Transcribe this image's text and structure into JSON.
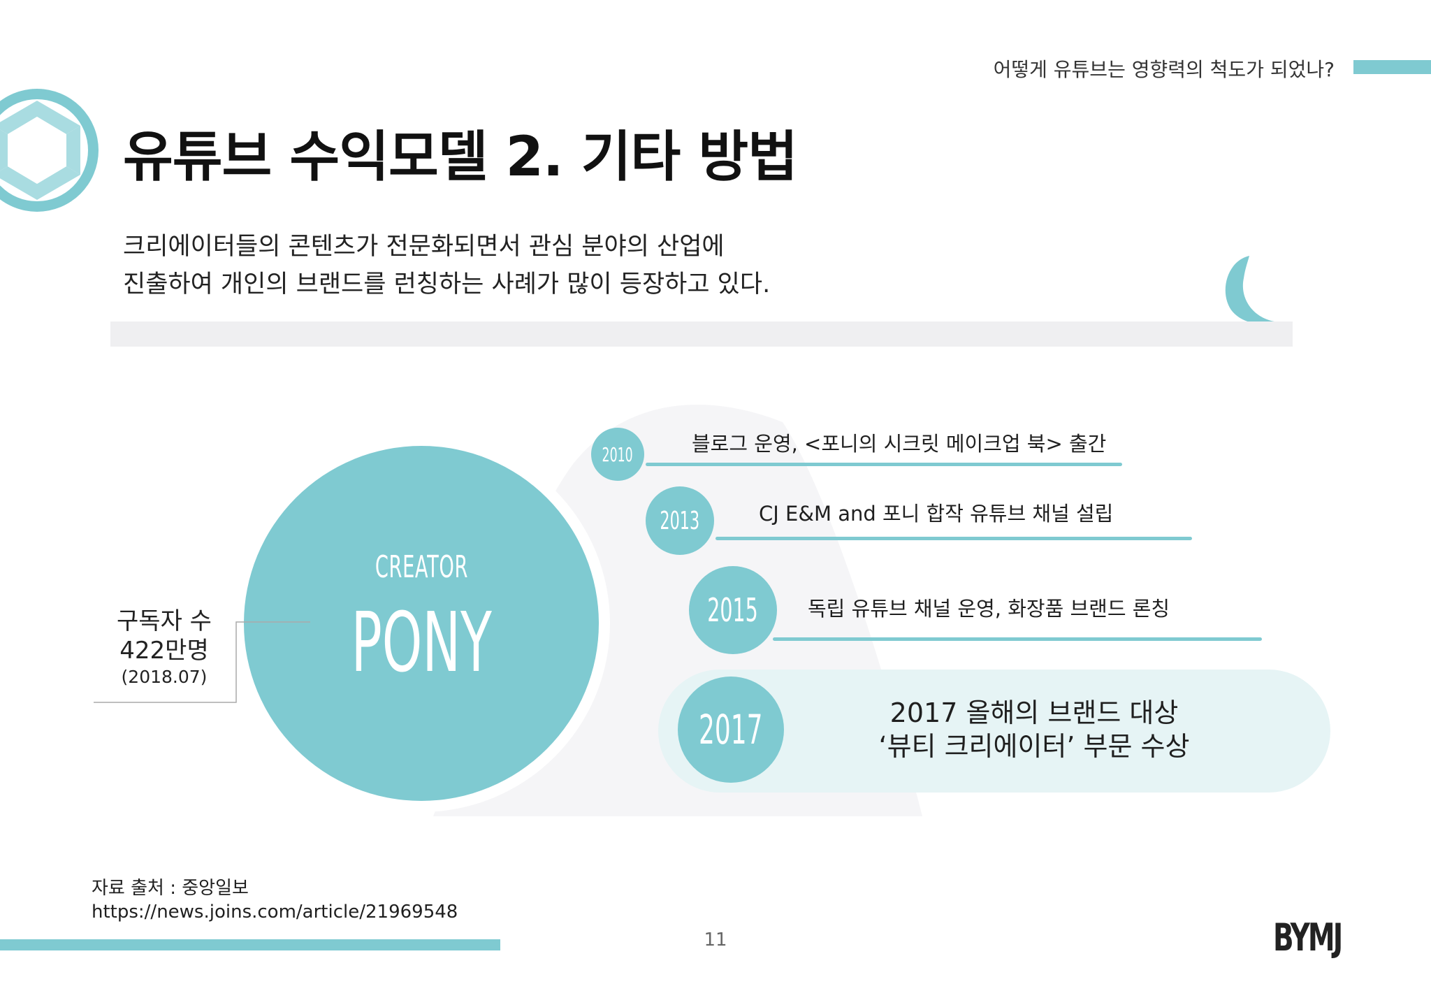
{
  "header": {
    "topic": "어떻게 유튜브는 영향력의 척도가 되었나?",
    "title": "유튜브 수익모델 2. 기타 방법"
  },
  "intro": {
    "line1": "크리에이터들의 콘텐츠가 전문화되면서 관심 분야의 산업에",
    "line2": "진출하여 개인의 브랜드를 런칭하는 사례가 많이 등장하고 있다."
  },
  "creator": {
    "label": "CREATOR",
    "name": "PONY"
  },
  "subscribers": {
    "label": "구독자 수",
    "value": "422만명",
    "date": "(2018.07)"
  },
  "timeline": [
    {
      "year": "2010",
      "text": "블로그 운영, <포니의 시크릿 메이크업 북> 출간"
    },
    {
      "year": "2013",
      "text": "CJ E&M and 포니 합작 유튜브 채널 설립"
    },
    {
      "year": "2015",
      "text": "독립 유튜브 채널 운영, 화장품 브랜드 론칭"
    },
    {
      "year": "2017",
      "text_line1": "2017 올해의 브랜드 대상",
      "text_line2": "‘뷰티 크리에이터’ 부문 수상"
    }
  ],
  "source": {
    "label": "자료 출처 : 중앙일보",
    "url": "https://news.joins.com/article/21969548"
  },
  "footer": {
    "page_number": "11",
    "logo_text": "BYMJ"
  },
  "colors": {
    "accent": "#7fcad1",
    "highlight_bg": "#e6f4f5",
    "band": "#efeff1"
  }
}
